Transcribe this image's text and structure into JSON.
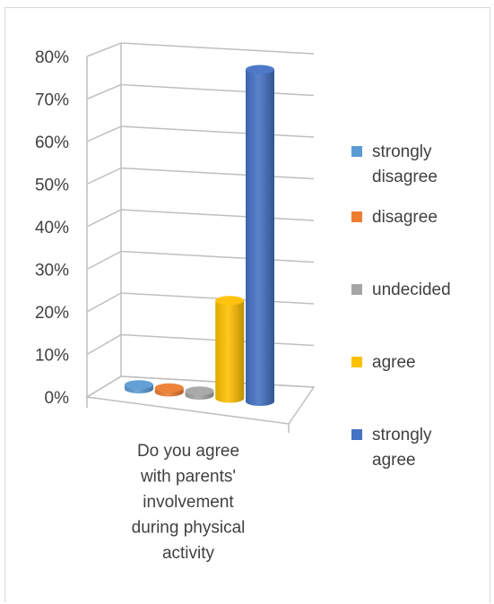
{
  "chart_data": {
    "type": "bar",
    "style": "3d-cylinder",
    "category": "Do you agree with parents' involvement during physical activity",
    "category_lines": [
      "Do you agree",
      "with parents'",
      "involvement",
      "during physical",
      "activity"
    ],
    "series": [
      {
        "name": "strongly disagree",
        "name_lines": [
          "strongly",
          "disagree"
        ],
        "value": 0.01,
        "color": "#5b9bd5"
      },
      {
        "name": "disagree",
        "name_lines": [
          "disagree"
        ],
        "value": 0.01,
        "color": "#ed7d31"
      },
      {
        "name": "undecided",
        "name_lines": [
          "undecided"
        ],
        "value": 0.01,
        "color": "#a5a5a5"
      },
      {
        "name": "agree",
        "name_lines": [
          "agree"
        ],
        "value": 0.23,
        "color": "#ffc000"
      },
      {
        "name": "strongly agree",
        "name_lines": [
          "strongly",
          "agree"
        ],
        "value": 0.78,
        "color": "#4472c4"
      }
    ],
    "y_ticks": [
      "0%",
      "10%",
      "20%",
      "30%",
      "40%",
      "50%",
      "60%",
      "70%",
      "80%"
    ],
    "ylim": [
      0,
      0.8
    ],
    "grid": true,
    "legend_position": "right"
  }
}
